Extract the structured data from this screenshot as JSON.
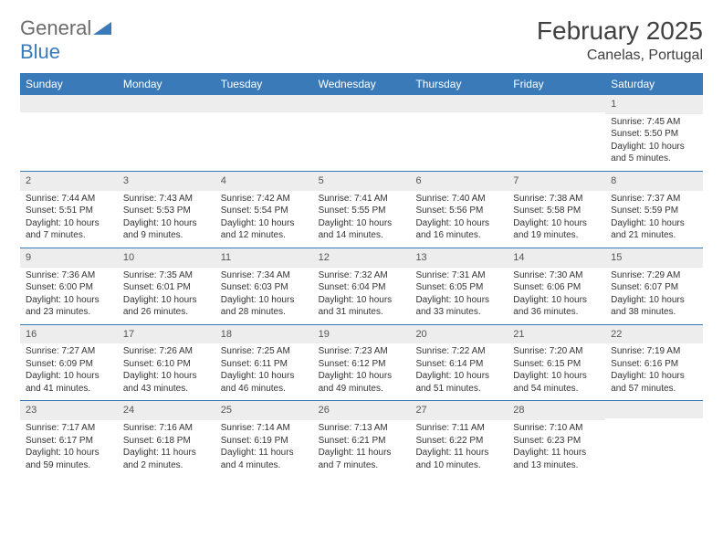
{
  "brand": {
    "part1": "General",
    "part2": "Blue"
  },
  "title": "February 2025",
  "location": "Canelas, Portugal",
  "colors": {
    "header_bg": "#3a7ab8",
    "daynum_bg": "#ededed",
    "row_border": "#3a7ab8",
    "text": "#333333",
    "brand_gray": "#6b6b6b",
    "brand_blue": "#3a7ab8"
  },
  "day_headers": [
    "Sunday",
    "Monday",
    "Tuesday",
    "Wednesday",
    "Thursday",
    "Friday",
    "Saturday"
  ],
  "weeks": [
    [
      null,
      null,
      null,
      null,
      null,
      null,
      {
        "n": "1",
        "sunrise": "7:45 AM",
        "sunset": "5:50 PM",
        "daylight": "10 hours and 5 minutes."
      }
    ],
    [
      {
        "n": "2",
        "sunrise": "7:44 AM",
        "sunset": "5:51 PM",
        "daylight": "10 hours and 7 minutes."
      },
      {
        "n": "3",
        "sunrise": "7:43 AM",
        "sunset": "5:53 PM",
        "daylight": "10 hours and 9 minutes."
      },
      {
        "n": "4",
        "sunrise": "7:42 AM",
        "sunset": "5:54 PM",
        "daylight": "10 hours and 12 minutes."
      },
      {
        "n": "5",
        "sunrise": "7:41 AM",
        "sunset": "5:55 PM",
        "daylight": "10 hours and 14 minutes."
      },
      {
        "n": "6",
        "sunrise": "7:40 AM",
        "sunset": "5:56 PM",
        "daylight": "10 hours and 16 minutes."
      },
      {
        "n": "7",
        "sunrise": "7:38 AM",
        "sunset": "5:58 PM",
        "daylight": "10 hours and 19 minutes."
      },
      {
        "n": "8",
        "sunrise": "7:37 AM",
        "sunset": "5:59 PM",
        "daylight": "10 hours and 21 minutes."
      }
    ],
    [
      {
        "n": "9",
        "sunrise": "7:36 AM",
        "sunset": "6:00 PM",
        "daylight": "10 hours and 23 minutes."
      },
      {
        "n": "10",
        "sunrise": "7:35 AM",
        "sunset": "6:01 PM",
        "daylight": "10 hours and 26 minutes."
      },
      {
        "n": "11",
        "sunrise": "7:34 AM",
        "sunset": "6:03 PM",
        "daylight": "10 hours and 28 minutes."
      },
      {
        "n": "12",
        "sunrise": "7:32 AM",
        "sunset": "6:04 PM",
        "daylight": "10 hours and 31 minutes."
      },
      {
        "n": "13",
        "sunrise": "7:31 AM",
        "sunset": "6:05 PM",
        "daylight": "10 hours and 33 minutes."
      },
      {
        "n": "14",
        "sunrise": "7:30 AM",
        "sunset": "6:06 PM",
        "daylight": "10 hours and 36 minutes."
      },
      {
        "n": "15",
        "sunrise": "7:29 AM",
        "sunset": "6:07 PM",
        "daylight": "10 hours and 38 minutes."
      }
    ],
    [
      {
        "n": "16",
        "sunrise": "7:27 AM",
        "sunset": "6:09 PM",
        "daylight": "10 hours and 41 minutes."
      },
      {
        "n": "17",
        "sunrise": "7:26 AM",
        "sunset": "6:10 PM",
        "daylight": "10 hours and 43 minutes."
      },
      {
        "n": "18",
        "sunrise": "7:25 AM",
        "sunset": "6:11 PM",
        "daylight": "10 hours and 46 minutes."
      },
      {
        "n": "19",
        "sunrise": "7:23 AM",
        "sunset": "6:12 PM",
        "daylight": "10 hours and 49 minutes."
      },
      {
        "n": "20",
        "sunrise": "7:22 AM",
        "sunset": "6:14 PM",
        "daylight": "10 hours and 51 minutes."
      },
      {
        "n": "21",
        "sunrise": "7:20 AM",
        "sunset": "6:15 PM",
        "daylight": "10 hours and 54 minutes."
      },
      {
        "n": "22",
        "sunrise": "7:19 AM",
        "sunset": "6:16 PM",
        "daylight": "10 hours and 57 minutes."
      }
    ],
    [
      {
        "n": "23",
        "sunrise": "7:17 AM",
        "sunset": "6:17 PM",
        "daylight": "10 hours and 59 minutes."
      },
      {
        "n": "24",
        "sunrise": "7:16 AM",
        "sunset": "6:18 PM",
        "daylight": "11 hours and 2 minutes."
      },
      {
        "n": "25",
        "sunrise": "7:14 AM",
        "sunset": "6:19 PM",
        "daylight": "11 hours and 4 minutes."
      },
      {
        "n": "26",
        "sunrise": "7:13 AM",
        "sunset": "6:21 PM",
        "daylight": "11 hours and 7 minutes."
      },
      {
        "n": "27",
        "sunrise": "7:11 AM",
        "sunset": "6:22 PM",
        "daylight": "11 hours and 10 minutes."
      },
      {
        "n": "28",
        "sunrise": "7:10 AM",
        "sunset": "6:23 PM",
        "daylight": "11 hours and 13 minutes."
      },
      null
    ]
  ]
}
